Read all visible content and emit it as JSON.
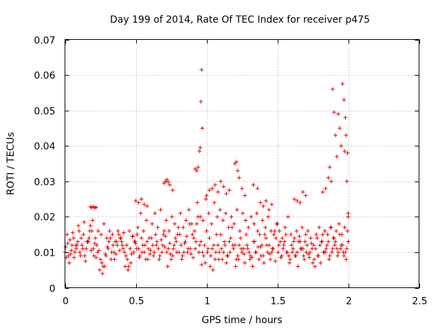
{
  "chart_data": {
    "type": "scatter",
    "title": "Day 199 of 2014, Rate Of TEC Index for receiver p475",
    "xlabel": "GPS time / hours",
    "ylabel": "ROTI / TECUs",
    "xlim": [
      0,
      2.5
    ],
    "ylim": [
      0,
      0.07
    ],
    "xticks": [
      0,
      0.5,
      1,
      1.5,
      2,
      2.5
    ],
    "xtick_labels": [
      "0",
      "0.5",
      "1",
      "1.5",
      "2",
      "2.5"
    ],
    "yticks": [
      0,
      0.01,
      0.02,
      0.03,
      0.04,
      0.05,
      0.06,
      0.07
    ],
    "ytick_labels": [
      "0",
      "0.01",
      "0.02",
      "0.03",
      "0.04",
      "0.05",
      "0.06",
      "0.07"
    ],
    "grid": true,
    "marker": "+",
    "color": "#e00000",
    "series": [
      {
        "name": "ROTI",
        "x": [
          0.0,
          0.02,
          0.04,
          0.06,
          0.08,
          0.1,
          0.12,
          0.14,
          0.16,
          0.18,
          0.2,
          0.22,
          0.24,
          0.26,
          0.28,
          0.3,
          0.32,
          0.34,
          0.36,
          0.38,
          0.4,
          0.42,
          0.44,
          0.46,
          0.48,
          0.5,
          0.52,
          0.54,
          0.56,
          0.58,
          0.6,
          0.62,
          0.64,
          0.66,
          0.68,
          0.7,
          0.72,
          0.74,
          0.76,
          0.78,
          0.8,
          0.82,
          0.84,
          0.86,
          0.88,
          0.9,
          0.92,
          0.94,
          0.96,
          0.98,
          1.0,
          1.02,
          1.04,
          1.06,
          1.08,
          1.1,
          1.12,
          1.14,
          1.16,
          1.18,
          1.2,
          1.22,
          1.24,
          1.26,
          1.28,
          1.3,
          1.32,
          1.34,
          1.36,
          1.38,
          1.4,
          1.42,
          1.44,
          1.46,
          1.48,
          1.5,
          1.52,
          1.54,
          1.56,
          1.58,
          1.6,
          1.62,
          1.64,
          1.66,
          1.68,
          1.7,
          1.72,
          1.74,
          1.76,
          1.78,
          1.8,
          1.82,
          1.84,
          1.86,
          1.88,
          1.9,
          1.92,
          1.94,
          1.96,
          1.98,
          2.0,
          0.01,
          0.03,
          0.05,
          0.07,
          0.09,
          0.11,
          0.13,
          0.15,
          0.17,
          0.19,
          0.21,
          0.23,
          0.25,
          0.27,
          0.29,
          0.31,
          0.33,
          0.35,
          0.37,
          0.39,
          0.41,
          0.43,
          0.45,
          0.47,
          0.49,
          0.51,
          0.53,
          0.55,
          0.57,
          0.59,
          0.61,
          0.63,
          0.65,
          0.67,
          0.69,
          0.71,
          0.73,
          0.75,
          0.77,
          0.79,
          0.81,
          0.83,
          0.85,
          0.87,
          0.89,
          0.91,
          0.93,
          0.95,
          0.97,
          0.99,
          1.01,
          1.03,
          1.05,
          1.07,
          1.09,
          1.11,
          1.13,
          1.15,
          1.17,
          1.19,
          1.21,
          1.23,
          1.25,
          1.27,
          1.29,
          1.31,
          1.33,
          1.35,
          1.37,
          1.39,
          1.41,
          1.43,
          1.45,
          1.47,
          1.49,
          1.51,
          1.53,
          1.55,
          1.57,
          1.59,
          1.61,
          1.63,
          1.65,
          1.67,
          1.69,
          1.71,
          1.73,
          1.75,
          1.77,
          1.79,
          1.81,
          1.83,
          1.85,
          1.87,
          1.89,
          1.91,
          1.93,
          1.95,
          1.97,
          1.99,
          0.005,
          0.025,
          0.045,
          0.065,
          0.085,
          0.105,
          0.125,
          0.145,
          0.165,
          0.185,
          0.205,
          0.225,
          0.245,
          0.265,
          0.285,
          0.305,
          0.325,
          0.345,
          0.365,
          0.385,
          0.405,
          0.425,
          0.445,
          0.465,
          0.485,
          0.505,
          0.525,
          0.545,
          0.565,
          0.585,
          0.605,
          0.625,
          0.645,
          0.665,
          0.685,
          0.705,
          0.725,
          0.745,
          0.765,
          0.785,
          0.805,
          0.825,
          0.845,
          0.865,
          0.885,
          0.905,
          0.925,
          0.945,
          0.965,
          0.985,
          1.005,
          1.025,
          1.045,
          1.065,
          1.085,
          1.105,
          1.125,
          1.145,
          1.165,
          1.185,
          1.205,
          1.225,
          1.245,
          1.265,
          1.285,
          1.305,
          1.325,
          1.345,
          1.365,
          1.385,
          1.405,
          1.425,
          1.445,
          1.465,
          1.485,
          1.505,
          1.525,
          1.545,
          1.565,
          1.585,
          1.605,
          1.625,
          1.645,
          1.665,
          1.685,
          1.705,
          1.725,
          1.745,
          1.765,
          1.785,
          1.805,
          1.825,
          1.845,
          1.865,
          1.885,
          1.905,
          1.925,
          1.945,
          1.965,
          1.985,
          0.015,
          0.035,
          0.055,
          0.075,
          0.095,
          0.115,
          0.135,
          0.155,
          0.175,
          0.195,
          0.215,
          0.235,
          0.255,
          0.275,
          0.295,
          0.315,
          0.335,
          0.355,
          0.375,
          0.395,
          0.415,
          0.435,
          0.455,
          0.475,
          0.495,
          0.515,
          0.535,
          0.555,
          0.575,
          0.595,
          0.615,
          0.635,
          0.655,
          0.675,
          0.695,
          0.715,
          0.735,
          0.755,
          0.775,
          0.795,
          0.815,
          0.835,
          0.855,
          0.875,
          0.895,
          0.915,
          0.935,
          0.955,
          0.975,
          0.995,
          1.015,
          1.035,
          1.055,
          1.075,
          1.095,
          1.115,
          1.135,
          1.155,
          1.175,
          1.195,
          1.215,
          1.235,
          1.255,
          1.275,
          1.295,
          1.315,
          1.335,
          1.355,
          1.375,
          1.395,
          1.415,
          1.435,
          1.455,
          1.475,
          1.495,
          1.515,
          1.535,
          1.555,
          1.575,
          1.595,
          1.615,
          1.635,
          1.655,
          1.675,
          1.695,
          1.715,
          1.735,
          1.755,
          1.775,
          1.795,
          1.815,
          1.835,
          1.855,
          1.875,
          1.895,
          1.915,
          1.935,
          1.955,
          1.975,
          1.995,
          0.18,
          0.19,
          0.2,
          0.21,
          0.22,
          0.7,
          0.71,
          0.72,
          0.73,
          0.74,
          0.76,
          0.92,
          0.93,
          0.94,
          0.95,
          0.955,
          0.96,
          0.965,
          0.97,
          1.2,
          1.21,
          1.22,
          1.23,
          1.25,
          1.27,
          1.33,
          1.36,
          1.68,
          1.7,
          1.82,
          1.84,
          1.86,
          1.87,
          1.88,
          1.89,
          1.9,
          1.91,
          1.92,
          1.93,
          1.94,
          1.95,
          1.96,
          1.97,
          1.975,
          1.98,
          1.985,
          1.99,
          1.995,
          2.0,
          2.0,
          0.5,
          0.52,
          0.54,
          0.56,
          0.58,
          1.0,
          1.02,
          1.04,
          1.06,
          1.08,
          1.1,
          1.12,
          1.14,
          1.16,
          1.38,
          1.4,
          1.42,
          1.44,
          1.46,
          1.62,
          1.64,
          1.66
        ],
        "y": [
          0.01,
          0.0125,
          0.0095,
          0.014,
          0.011,
          0.016,
          0.012,
          0.009,
          0.013,
          0.0175,
          0.011,
          0.0085,
          0.0105,
          0.007,
          0.006,
          0.0115,
          0.014,
          0.012,
          0.0095,
          0.015,
          0.013,
          0.01,
          0.008,
          0.011,
          0.0145,
          0.0125,
          0.011,
          0.014,
          0.01,
          0.013,
          0.0095,
          0.012,
          0.015,
          0.011,
          0.0135,
          0.016,
          0.01,
          0.0125,
          0.009,
          0.014,
          0.017,
          0.012,
          0.01,
          0.0145,
          0.018,
          0.015,
          0.011,
          0.02,
          0.013,
          0.009,
          0.016,
          0.014,
          0.011,
          0.008,
          0.012,
          0.015,
          0.01,
          0.007,
          0.013,
          0.017,
          0.012,
          0.009,
          0.014,
          0.011,
          0.015,
          0.01,
          0.0085,
          0.013,
          0.016,
          0.0115,
          0.009,
          0.014,
          0.012,
          0.01,
          0.016,
          0.018,
          0.013,
          0.011,
          0.015,
          0.009,
          0.012,
          0.014,
          0.01,
          0.013,
          0.011,
          0.015,
          0.0095,
          0.0125,
          0.008,
          0.014,
          0.012,
          0.015,
          0.01,
          0.013,
          0.017,
          0.014,
          0.011,
          0.015,
          0.012,
          0.01,
          0.013,
          0.0085,
          0.007,
          0.012,
          0.01,
          0.013,
          0.009,
          0.015,
          0.011,
          0.014,
          0.016,
          0.0125,
          0.01,
          0.008,
          0.006,
          0.009,
          0.013,
          0.01,
          0.008,
          0.012,
          0.014,
          0.011,
          0.009,
          0.006,
          0.0095,
          0.013,
          0.015,
          0.009,
          0.012,
          0.008,
          0.011,
          0.014,
          0.01,
          0.013,
          0.009,
          0.012,
          0.0145,
          0.011,
          0.008,
          0.012,
          0.01,
          0.015,
          0.009,
          0.013,
          0.011,
          0.0095,
          0.014,
          0.018,
          0.012,
          0.01,
          0.007,
          0.011,
          0.009,
          0.012,
          0.015,
          0.01,
          0.008,
          0.012,
          0.009,
          0.014,
          0.011,
          0.008,
          0.012,
          0.01,
          0.007,
          0.011,
          0.009,
          0.013,
          0.01,
          0.008,
          0.012,
          0.015,
          0.01,
          0.008,
          0.011,
          0.014,
          0.012,
          0.009,
          0.013,
          0.01,
          0.008,
          0.011,
          0.009,
          0.013,
          0.011,
          0.008,
          0.012,
          0.01,
          0.007,
          0.011,
          0.009,
          0.013,
          0.01,
          0.012,
          0.009,
          0.011,
          0.013,
          0.01,
          0.012,
          0.009,
          0.011,
          0.0115,
          0.009,
          0.0105,
          0.0085,
          0.012,
          0.01,
          0.011,
          0.0075,
          0.013,
          0.0105,
          0.009,
          0.012,
          0.005,
          0.004,
          0.0095,
          0.011,
          0.008,
          0.01,
          0.013,
          0.0105,
          0.012,
          0.006,
          0.005,
          0.007,
          0.01,
          0.011,
          0.0085,
          0.01,
          0.012,
          0.008,
          0.0105,
          0.009,
          0.012,
          0.008,
          0.01,
          0.0115,
          0.006,
          0.0095,
          0.011,
          0.013,
          0.01,
          0.008,
          0.0125,
          0.01,
          0.011,
          0.0085,
          0.013,
          0.01,
          0.0065,
          0.012,
          0.01,
          0.006,
          0.005,
          0.01,
          0.008,
          0.011,
          0.013,
          0.009,
          0.01,
          0.012,
          0.006,
          0.008,
          0.011,
          0.0095,
          0.012,
          0.008,
          0.006,
          0.01,
          0.0115,
          0.009,
          0.007,
          0.012,
          0.0095,
          0.011,
          0.0075,
          0.01,
          0.0085,
          0.012,
          0.01,
          0.007,
          0.01,
          0.009,
          0.006,
          0.011,
          0.009,
          0.01,
          0.0085,
          0.011,
          0.006,
          0.009,
          0.007,
          0.01,
          0.011,
          0.008,
          0.01,
          0.012,
          0.009,
          0.011,
          0.01,
          0.008,
          0.015,
          0.0135,
          0.0155,
          0.012,
          0.0175,
          0.014,
          0.0185,
          0.013,
          0.016,
          0.019,
          0.014,
          0.016,
          0.015,
          0.018,
          0.014,
          0.016,
          0.015,
          0.013,
          0.016,
          0.014,
          0.0155,
          0.012,
          0.016,
          0.0145,
          0.013,
          0.017,
          0.021,
          0.016,
          0.019,
          0.014,
          0.018,
          0.021,
          0.017,
          0.022,
          0.015,
          0.019,
          0.016,
          0.02,
          0.018,
          0.015,
          0.021,
          0.017,
          0.019,
          0.022,
          0.018,
          0.016,
          0.024,
          0.02,
          0.019,
          0.025,
          0.021,
          0.018,
          0.024,
          0.02,
          0.022,
          0.019,
          0.021,
          0.017,
          0.02,
          0.018,
          0.022,
          0.016,
          0.021,
          0.019,
          0.017,
          0.02,
          0.018,
          0.021,
          0.015,
          0.019,
          0.017,
          0.02,
          0.016,
          0.015,
          0.018,
          0.016,
          0.014,
          0.017,
          0.02,
          0.015,
          0.013,
          0.016,
          0.0145,
          0.017,
          0.013,
          0.016,
          0.014,
          0.012,
          0.015,
          0.017,
          0.013,
          0.016,
          0.015,
          0.017,
          0.014,
          0.016,
          0.018,
          0.015,
          0.017,
          0.016,
          0.0228,
          0.0226,
          0.0229,
          0.0225,
          0.0227,
          0.0295,
          0.03,
          0.0305,
          0.0298,
          0.029,
          0.0275,
          0.0335,
          0.033,
          0.034,
          0.0385,
          0.0395,
          0.0525,
          0.0615,
          0.045,
          0.035,
          0.0355,
          0.033,
          0.031,
          0.028,
          0.026,
          0.029,
          0.028,
          0.027,
          0.026,
          0.027,
          0.028,
          0.031,
          0.034,
          0.03,
          0.056,
          0.0495,
          0.043,
          0.037,
          0.049,
          0.045,
          0.04,
          0.0575,
          0.053,
          0.0385,
          0.048,
          0.043,
          0.03,
          0.038,
          0.021,
          0.02,
          0.0245,
          0.024,
          0.025,
          0.0235,
          0.023,
          0.026,
          0.0275,
          0.028,
          0.029,
          0.027,
          0.03,
          0.0285,
          0.0265,
          0.0275,
          0.024,
          0.023,
          0.0245,
          0.022,
          0.0235,
          0.025,
          0.0245,
          0.024
        ]
      }
    ]
  }
}
